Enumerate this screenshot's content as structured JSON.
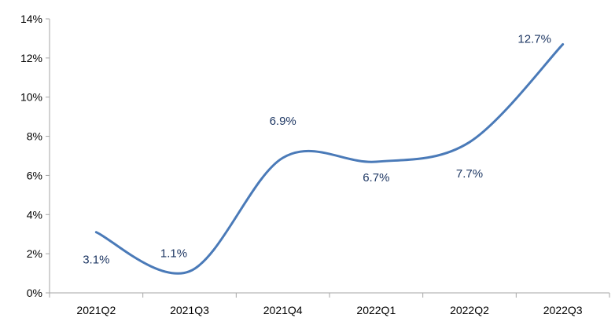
{
  "colors": {
    "line": "#4a7ab8",
    "axis": "#a6a6a6",
    "data_label": "#1f3864",
    "text": "#000000"
  },
  "chart_data": {
    "type": "line",
    "title": "",
    "xlabel": "",
    "ylabel": "",
    "categories": [
      "2021Q2",
      "2021Q3",
      "2021Q4",
      "2022Q1",
      "2022Q2",
      "2022Q3"
    ],
    "series": [
      {
        "values": [
          3.1,
          1.1,
          6.9,
          6.7,
          7.7,
          12.7
        ],
        "labels": [
          "3.1%",
          "1.1%",
          "6.9%",
          "6.7%",
          "7.7%",
          "12.7%"
        ],
        "smooth": true
      }
    ],
    "ylim": [
      0,
      14
    ],
    "yticks": [
      0,
      2,
      4,
      6,
      8,
      10,
      12,
      14
    ],
    "ytick_labels": [
      "0%",
      "2%",
      "4%",
      "6%",
      "8%",
      "10%",
      "12%",
      "14%"
    ],
    "grid": false,
    "legend": "none"
  }
}
